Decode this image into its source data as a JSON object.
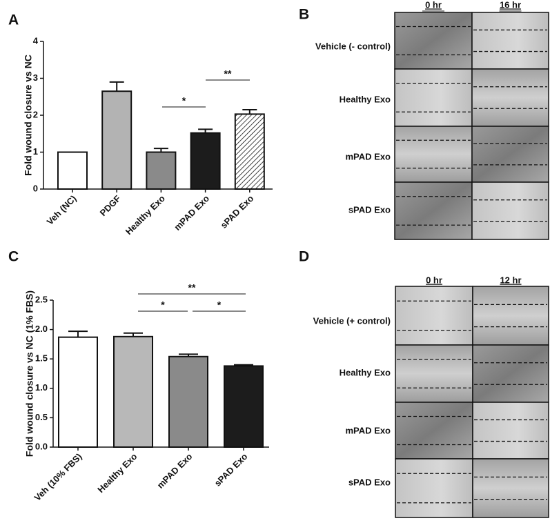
{
  "chart_data": [
    {
      "type": "bar",
      "label": "A",
      "ylabel": "Fold wound closure vs NC",
      "categories": [
        "Veh (NC)",
        "PDGF",
        "Healthy Exo",
        "mPAD Exo",
        "sPAD Exo"
      ],
      "values": [
        1.0,
        2.65,
        1.0,
        1.52,
        2.03
      ],
      "errors": [
        null,
        0.25,
        0.1,
        0.1,
        0.12
      ],
      "colors": [
        "#ffffff",
        "#b3b3b3",
        "#8a8a8a",
        "#1c1c1c",
        "hatch"
      ],
      "ylim": [
        0,
        4
      ],
      "yticks": [
        0,
        1,
        2,
        3,
        4
      ],
      "annotations": [
        {
          "text": "*"
        },
        {
          "text": "**"
        }
      ]
    },
    {
      "type": "bar",
      "label": "C",
      "ylabel": "Fold wound closure vs NC (1% FBS)",
      "categories": [
        "Veh (10% FBS)",
        "Healthy Exo",
        "mPAD Exo",
        "sPAD Exo"
      ],
      "values": [
        1.87,
        1.88,
        1.54,
        1.38
      ],
      "errors": [
        0.1,
        0.06,
        0.04,
        0.02
      ],
      "colors": [
        "#ffffff",
        "#b8b8b8",
        "#8a8a8a",
        "#1c1c1c"
      ],
      "ylim": [
        0,
        2.5
      ],
      "yticks": [
        {
          "value": 0,
          "label": "0.0"
        },
        0.5,
        {
          "value": 1,
          "label": "1.0"
        },
        1.5,
        {
          "value": 2,
          "label": "2.0"
        },
        2.5
      ],
      "annotations": [
        {
          "text": "**"
        },
        {
          "text": "*"
        },
        {
          "text": "*"
        }
      ]
    }
  ],
  "image_panels": [
    {
      "label": "B",
      "columns": [
        "0 hr",
        "16 hr"
      ],
      "rows": [
        "Vehicle (- control)",
        "Healthy Exo",
        "mPAD Exo",
        "sPAD Exo"
      ]
    },
    {
      "label": "D",
      "columns": [
        "0 hr",
        "12 hr"
      ],
      "rows": [
        "Vehicle (+ control)",
        "Healthy Exo",
        "mPAD Exo",
        "sPAD Exo"
      ]
    }
  ]
}
